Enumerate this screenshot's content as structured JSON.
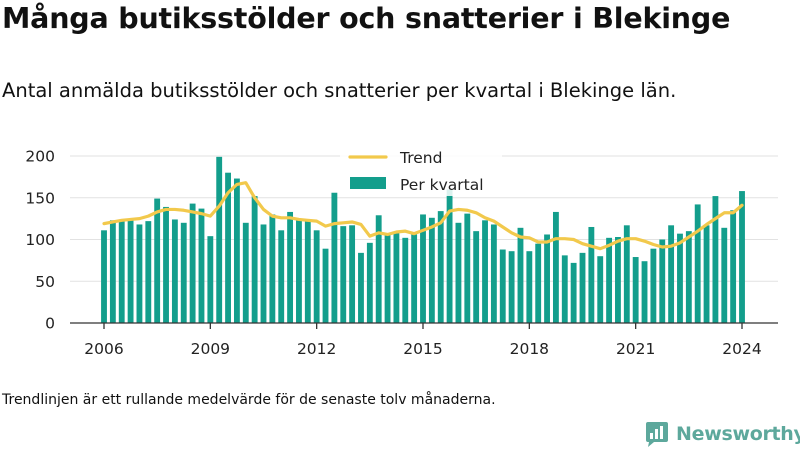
{
  "title": "Många butiksstölder och snatterier i Blekinge",
  "subtitle": "Antal anmälda butiksstölder och snatterier per kvartal i Blekinge län.",
  "footnote": "Trendlinjen är ett rullande medelvärde för de senaste tolv månaderna.",
  "brand": {
    "name": "Newsworthy",
    "icon": "newsworthy-logo-icon",
    "color": "#5da89c"
  },
  "colors": {
    "bars": "#139e8c",
    "trend": "#f2c94c",
    "grid": "#e2e2e2",
    "axis": "#333333"
  },
  "chart_data": {
    "type": "bar",
    "title": "",
    "xlabel": "",
    "ylabel": "",
    "ylim": [
      0,
      200
    ],
    "xlim": [
      2006,
      2024
    ],
    "x_ticks": [
      "2006",
      "2009",
      "2012",
      "2015",
      "2018",
      "2021",
      "2024"
    ],
    "y_ticks": [
      "0",
      "50",
      "100",
      "150",
      "200"
    ],
    "grid": "horizontal",
    "legend": {
      "placement": "top-center",
      "entries": [
        "Trend",
        "Per kvartal"
      ]
    },
    "series": [
      {
        "name": "Per kvartal",
        "kind": "bar",
        "x": [
          2006.0,
          2006.25,
          2006.5,
          2006.75,
          2007.0,
          2007.25,
          2007.5,
          2007.75,
          2008.0,
          2008.25,
          2008.5,
          2008.75,
          2009.0,
          2009.25,
          2009.5,
          2009.75,
          2010.0,
          2010.25,
          2010.5,
          2010.75,
          2011.0,
          2011.25,
          2011.5,
          2011.75,
          2012.0,
          2012.25,
          2012.5,
          2012.75,
          2013.0,
          2013.25,
          2013.5,
          2013.75,
          2014.0,
          2014.25,
          2014.5,
          2014.75,
          2015.0,
          2015.25,
          2015.5,
          2015.75,
          2016.0,
          2016.25,
          2016.5,
          2016.75,
          2017.0,
          2017.25,
          2017.5,
          2017.75,
          2018.0,
          2018.25,
          2018.5,
          2018.75,
          2019.0,
          2019.25,
          2019.5,
          2019.75,
          2020.0,
          2020.25,
          2020.5,
          2020.75,
          2021.0,
          2021.25,
          2021.5,
          2021.75,
          2022.0,
          2022.25,
          2022.5,
          2022.75,
          2023.0,
          2023.25,
          2023.5,
          2023.75,
          2024.0
        ],
        "values": [
          111,
          123,
          122,
          125,
          118,
          122,
          149,
          139,
          124,
          120,
          143,
          137,
          104,
          199,
          180,
          173,
          120,
          152,
          118,
          130,
          111,
          133,
          124,
          122,
          111,
          89,
          156,
          116,
          117,
          84,
          96,
          129,
          106,
          108,
          102,
          106,
          130,
          126,
          134,
          160,
          120,
          131,
          110,
          123,
          118,
          88,
          86,
          114,
          86,
          95,
          106,
          133,
          81,
          72,
          84,
          115,
          80,
          102,
          103,
          117,
          79,
          74,
          89,
          100,
          117,
          107,
          110,
          142,
          117,
          152,
          114,
          135,
          158
        ]
      },
      {
        "name": "Trend",
        "kind": "line",
        "x": [
          2006.0,
          2006.25,
          2006.5,
          2006.75,
          2007.0,
          2007.25,
          2007.5,
          2007.75,
          2008.0,
          2008.25,
          2008.5,
          2008.75,
          2009.0,
          2009.25,
          2009.5,
          2009.75,
          2010.0,
          2010.25,
          2010.5,
          2010.75,
          2011.0,
          2011.25,
          2011.5,
          2011.75,
          2012.0,
          2012.25,
          2012.5,
          2012.75,
          2013.0,
          2013.25,
          2013.5,
          2013.75,
          2014.0,
          2014.25,
          2014.5,
          2014.75,
          2015.0,
          2015.25,
          2015.5,
          2015.75,
          2016.0,
          2016.25,
          2016.5,
          2016.75,
          2017.0,
          2017.25,
          2017.5,
          2017.75,
          2018.0,
          2018.25,
          2018.5,
          2018.75,
          2019.0,
          2019.25,
          2019.5,
          2019.75,
          2020.0,
          2020.25,
          2020.5,
          2020.75,
          2021.0,
          2021.25,
          2021.5,
          2021.75,
          2022.0,
          2022.25,
          2022.5,
          2022.75,
          2023.0,
          2023.25,
          2023.5,
          2023.75,
          2024.0
        ],
        "values": [
          119,
          121,
          123,
          124,
          125,
          128,
          133,
          136,
          136,
          135,
          133,
          131,
          128,
          140,
          156,
          166,
          168,
          150,
          136,
          128,
          126,
          126,
          124,
          123,
          122,
          116,
          119,
          120,
          121,
          118,
          104,
          108,
          106,
          109,
          110,
          107,
          111,
          115,
          120,
          134,
          136,
          135,
          132,
          126,
          122,
          115,
          108,
          103,
          102,
          97,
          97,
          101,
          101,
          100,
          95,
          92,
          89,
          93,
          98,
          101,
          101,
          98,
          94,
          91,
          92,
          96,
          103,
          110,
          118,
          125,
          132,
          132,
          141
        ]
      }
    ]
  }
}
